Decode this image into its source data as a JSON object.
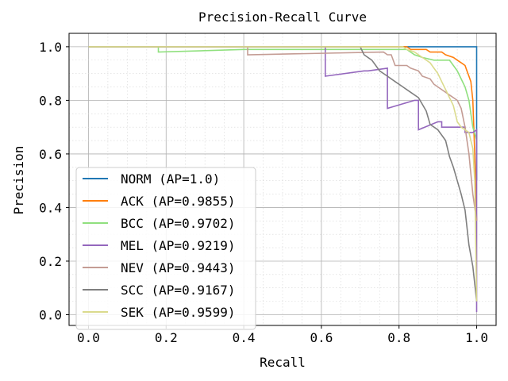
{
  "chart_data": {
    "type": "line",
    "title": "Precision-Recall Curve",
    "xlabel": "Recall",
    "ylabel": "Precision",
    "xlim": [
      -0.05,
      1.05
    ],
    "ylim": [
      -0.04,
      1.05
    ],
    "xticks": [
      0.0,
      0.2,
      0.4,
      0.6,
      0.8,
      1.0
    ],
    "xtick_labels": [
      "0.0",
      "0.2",
      "0.4",
      "0.6",
      "0.8",
      "1.0"
    ],
    "yticks": [
      0.0,
      0.2,
      0.4,
      0.6,
      0.8,
      1.0
    ],
    "ytick_labels": [
      "0.0",
      "0.2",
      "0.4",
      "0.6",
      "0.8",
      "1.0"
    ],
    "grid": "major and minor",
    "legend_position": "lower-left",
    "series": [
      {
        "name": "NORM (AP=1.0)",
        "color": "#1f77b4",
        "points": [
          [
            0.0,
            1.0
          ],
          [
            1.0,
            1.0
          ],
          [
            1.0,
            0.5
          ]
        ]
      },
      {
        "name": "ACK (AP=0.9855)",
        "color": "#ff7f0e",
        "points": [
          [
            0.0,
            1.0
          ],
          [
            0.82,
            1.0
          ],
          [
            0.83,
            0.99
          ],
          [
            0.87,
            0.99
          ],
          [
            0.88,
            0.98
          ],
          [
            0.91,
            0.98
          ],
          [
            0.92,
            0.97
          ],
          [
            0.94,
            0.96
          ],
          [
            0.95,
            0.95
          ],
          [
            0.96,
            0.94
          ],
          [
            0.97,
            0.93
          ],
          [
            0.975,
            0.91
          ],
          [
            0.98,
            0.89
          ],
          [
            0.985,
            0.87
          ],
          [
            0.99,
            0.8
          ],
          [
            0.995,
            0.6
          ],
          [
            1.0,
            0.35
          ]
        ]
      },
      {
        "name": "BCC (AP=0.9702)",
        "color": "#90e07e",
        "points": [
          [
            0.0,
            1.0
          ],
          [
            0.18,
            1.0
          ],
          [
            0.18,
            0.98
          ],
          [
            0.4,
            0.99
          ],
          [
            0.82,
            0.99
          ],
          [
            0.84,
            0.97
          ],
          [
            0.86,
            0.96
          ],
          [
            0.89,
            0.95
          ],
          [
            0.93,
            0.95
          ],
          [
            0.94,
            0.93
          ],
          [
            0.95,
            0.91
          ],
          [
            0.96,
            0.88
          ],
          [
            0.97,
            0.85
          ],
          [
            0.98,
            0.8
          ],
          [
            0.99,
            0.7
          ],
          [
            1.0,
            0.65
          ]
        ]
      },
      {
        "name": "MEL (AP=0.9219)",
        "color": "#9467bd",
        "points": [
          [
            0.0,
            1.0
          ],
          [
            0.61,
            1.0
          ],
          [
            0.61,
            0.89
          ],
          [
            0.71,
            0.91
          ],
          [
            0.72,
            0.91
          ],
          [
            0.77,
            0.92
          ],
          [
            0.77,
            0.77
          ],
          [
            0.84,
            0.8
          ],
          [
            0.85,
            0.8
          ],
          [
            0.85,
            0.69
          ],
          [
            0.9,
            0.72
          ],
          [
            0.91,
            0.72
          ],
          [
            0.91,
            0.7
          ],
          [
            0.97,
            0.7
          ],
          [
            0.97,
            0.68
          ],
          [
            0.99,
            0.68
          ],
          [
            1.0,
            0.69
          ],
          [
            1.0,
            0.01
          ]
        ]
      },
      {
        "name": "NEV (AP=0.9443)",
        "color": "#c49c94",
        "points": [
          [
            0.0,
            1.0
          ],
          [
            0.41,
            1.0
          ],
          [
            0.41,
            0.97
          ],
          [
            0.76,
            0.98
          ],
          [
            0.77,
            0.97
          ],
          [
            0.78,
            0.97
          ],
          [
            0.79,
            0.93
          ],
          [
            0.82,
            0.93
          ],
          [
            0.83,
            0.92
          ],
          [
            0.85,
            0.91
          ],
          [
            0.86,
            0.89
          ],
          [
            0.88,
            0.88
          ],
          [
            0.89,
            0.86
          ],
          [
            0.91,
            0.84
          ],
          [
            0.93,
            0.82
          ],
          [
            0.95,
            0.8
          ],
          [
            0.96,
            0.77
          ],
          [
            0.97,
            0.7
          ],
          [
            0.98,
            0.6
          ],
          [
            0.99,
            0.45
          ],
          [
            1.0,
            0.35
          ]
        ]
      },
      {
        "name": "SCC (AP=0.9167)",
        "color": "#7f7f7f",
        "points": [
          [
            0.0,
            1.0
          ],
          [
            0.7,
            1.0
          ],
          [
            0.71,
            0.97
          ],
          [
            0.73,
            0.95
          ],
          [
            0.74,
            0.93
          ],
          [
            0.75,
            0.91
          ],
          [
            0.77,
            0.89
          ],
          [
            0.79,
            0.87
          ],
          [
            0.81,
            0.85
          ],
          [
            0.83,
            0.83
          ],
          [
            0.85,
            0.81
          ],
          [
            0.87,
            0.76
          ],
          [
            0.88,
            0.71
          ],
          [
            0.9,
            0.69
          ],
          [
            0.92,
            0.65
          ],
          [
            0.93,
            0.59
          ],
          [
            0.94,
            0.55
          ],
          [
            0.95,
            0.5
          ],
          [
            0.96,
            0.45
          ],
          [
            0.97,
            0.39
          ],
          [
            0.98,
            0.26
          ],
          [
            0.99,
            0.18
          ],
          [
            1.0,
            0.05
          ]
        ]
      },
      {
        "name": "SEK (AP=0.9599)",
        "color": "#dbdb8d",
        "points": [
          [
            0.0,
            1.0
          ],
          [
            0.81,
            1.0
          ],
          [
            0.82,
            0.99
          ],
          [
            0.84,
            0.98
          ],
          [
            0.86,
            0.96
          ],
          [
            0.88,
            0.94
          ],
          [
            0.9,
            0.9
          ],
          [
            0.91,
            0.87
          ],
          [
            0.92,
            0.84
          ],
          [
            0.93,
            0.81
          ],
          [
            0.94,
            0.78
          ],
          [
            0.95,
            0.72
          ],
          [
            0.96,
            0.7
          ],
          [
            0.98,
            0.68
          ],
          [
            0.99,
            0.62
          ],
          [
            0.995,
            0.5
          ],
          [
            1.0,
            0.05
          ]
        ]
      }
    ]
  }
}
